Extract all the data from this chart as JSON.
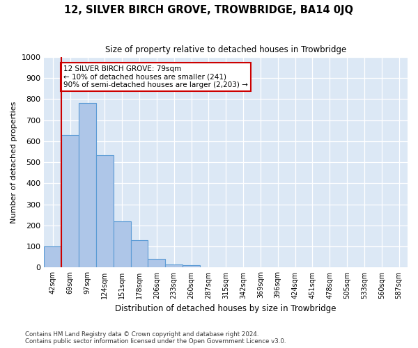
{
  "title": "12, SILVER BIRCH GROVE, TROWBRIDGE, BA14 0JQ",
  "subtitle": "Size of property relative to detached houses in Trowbridge",
  "xlabel": "Distribution of detached houses by size in Trowbridge",
  "ylabel": "Number of detached properties",
  "bar_values": [
    100,
    630,
    780,
    535,
    220,
    130,
    40,
    15,
    10,
    2,
    0,
    0,
    0,
    0,
    0,
    0,
    0,
    0,
    0,
    0,
    0
  ],
  "bar_labels": [
    "42sqm",
    "69sqm",
    "97sqm",
    "124sqm",
    "151sqm",
    "178sqm",
    "206sqm",
    "233sqm",
    "260sqm",
    "287sqm",
    "315sqm",
    "342sqm",
    "369sqm",
    "396sqm",
    "424sqm",
    "451sqm",
    "478sqm",
    "505sqm",
    "533sqm",
    "560sqm",
    "587sqm"
  ],
  "bar_color": "#aec6e8",
  "bar_edge_color": "#5b9bd5",
  "property_line_color": "#cc0000",
  "annotation_box_edge_color": "#cc0000",
  "annotation_text_line1": "12 SILVER BIRCH GROVE: 79sqm",
  "annotation_text_line2": "← 10% of detached houses are smaller (241)",
  "annotation_text_line3": "90% of semi-detached houses are larger (2,203) →",
  "ylim": [
    0,
    1000
  ],
  "yticks": [
    0,
    100,
    200,
    300,
    400,
    500,
    600,
    700,
    800,
    900,
    1000
  ],
  "footer_line1": "Contains HM Land Registry data © Crown copyright and database right 2024.",
  "footer_line2": "Contains public sector information licensed under the Open Government Licence v3.0.",
  "plot_bg_color": "#dce8f5",
  "fig_bg_color": "#ffffff"
}
